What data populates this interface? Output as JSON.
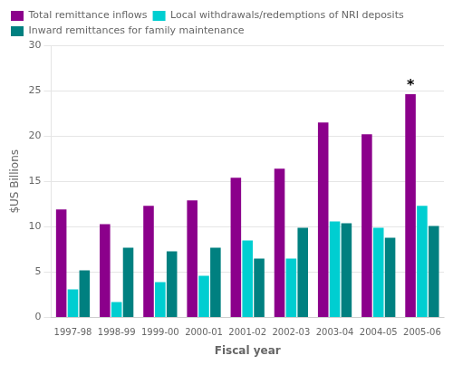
{
  "chart_data": {
    "type": "bar",
    "categories": [
      "1997-98",
      "1998-99",
      "1999-00",
      "2000-01",
      "2001-02",
      "2002-03",
      "2003-04",
      "2004-05",
      "2005-06"
    ],
    "series": [
      {
        "name": "Total remittance inflows",
        "color": "#8B008B",
        "values": [
          11.9,
          10.3,
          12.3,
          12.9,
          15.4,
          16.4,
          21.5,
          20.2,
          24.6
        ]
      },
      {
        "name": "Local withdrawals/redemptions of NRI deposits",
        "color": "#00CED1",
        "values": [
          3.1,
          1.7,
          3.9,
          4.6,
          8.5,
          6.5,
          10.6,
          9.9,
          12.3
        ]
      },
      {
        "name": "Inward remittances for family maintenance",
        "color": "#008080",
        "values": [
          5.2,
          7.7,
          7.3,
          7.7,
          6.5,
          9.9,
          10.4,
          8.8,
          10.1
        ]
      }
    ],
    "xlabel": "Fiscal year",
    "ylabel": "$US Billions",
    "ylim": [
      0,
      30
    ],
    "yticks": [
      0,
      5,
      10,
      15,
      20,
      25,
      30
    ],
    "grid": true,
    "legend": "upper left",
    "annotations": [
      {
        "text": "*",
        "category": "2005-06",
        "series": "Total remittance inflows"
      }
    ]
  }
}
